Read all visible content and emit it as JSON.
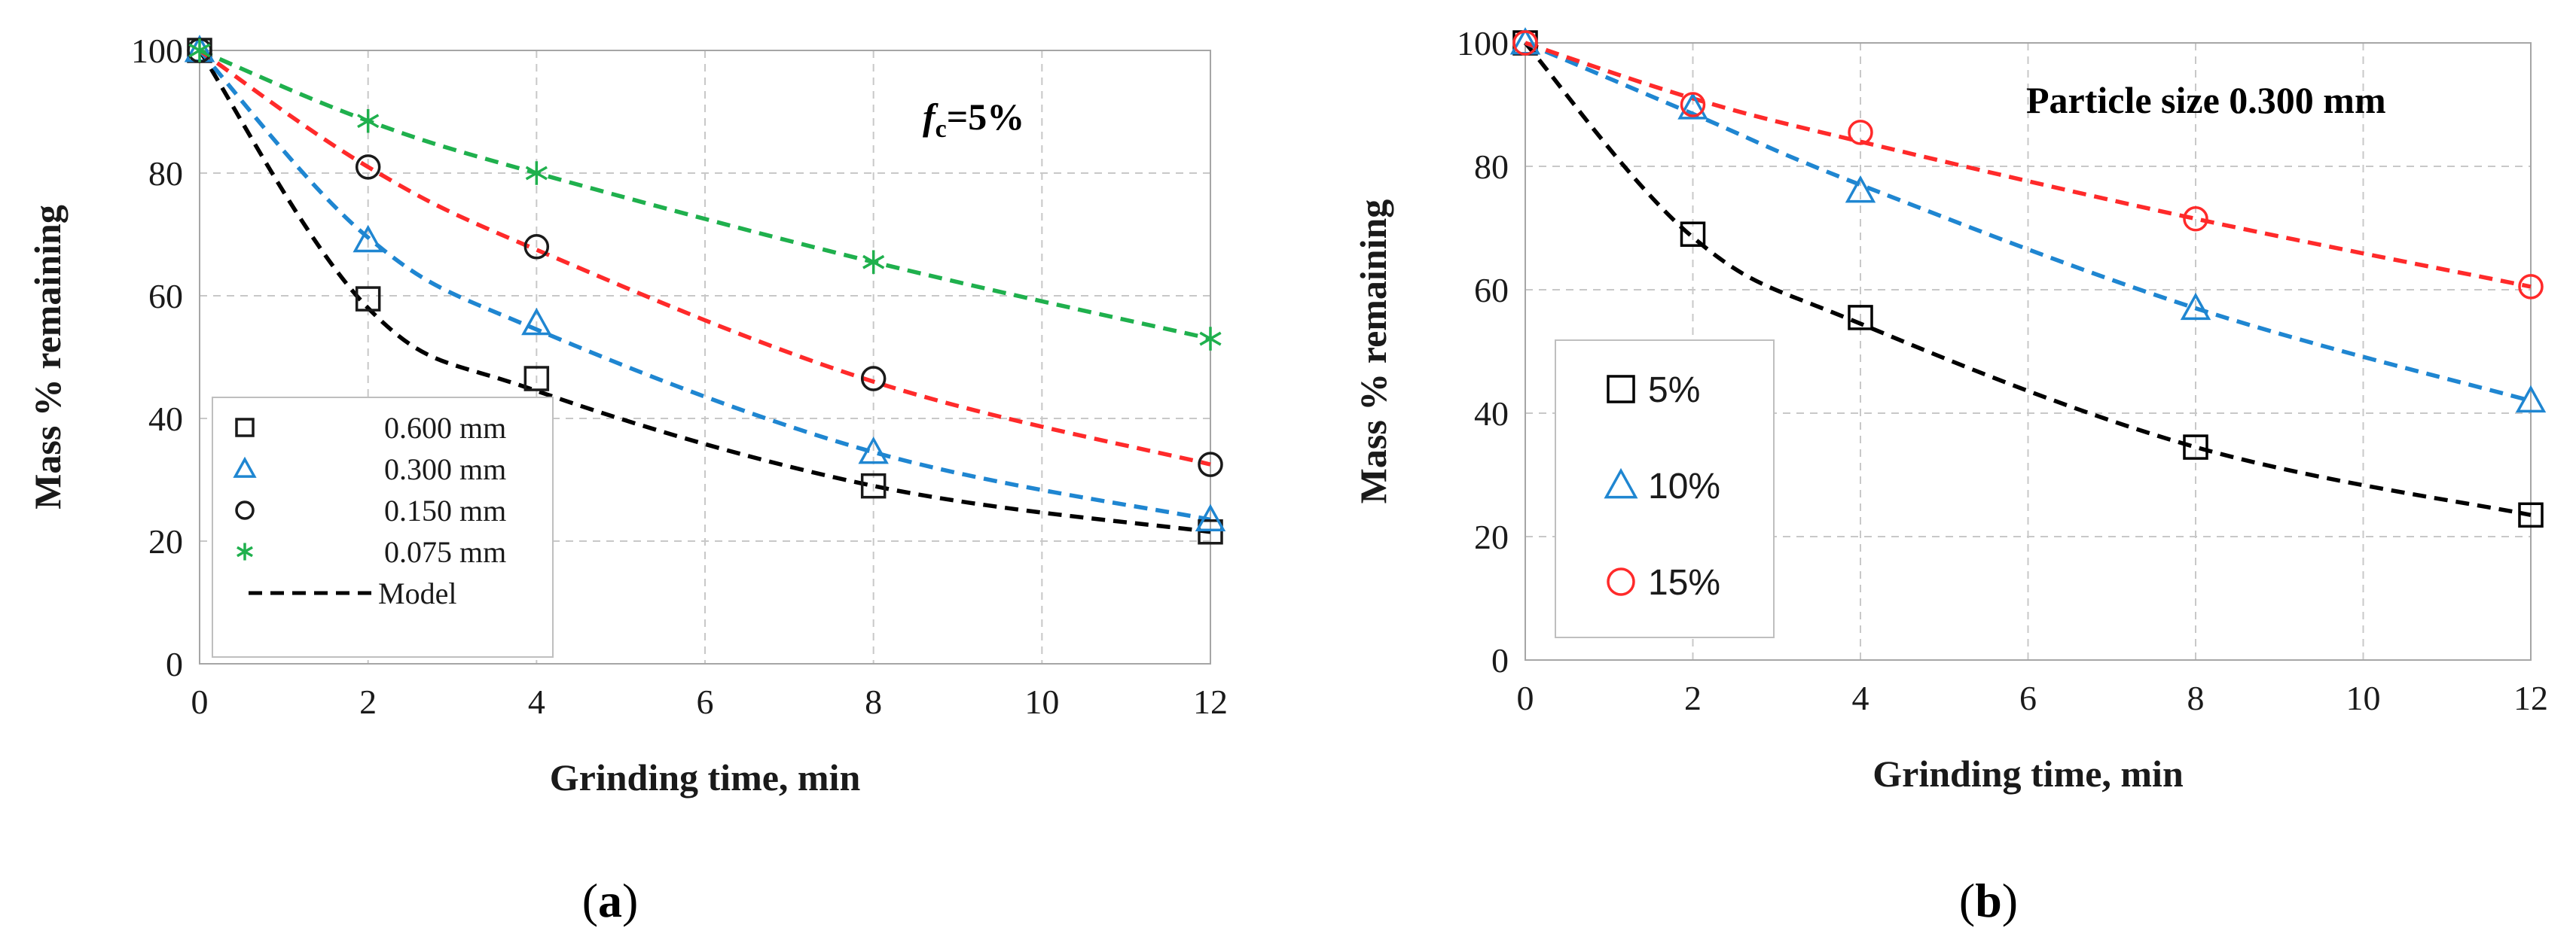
{
  "chart_data": [
    {
      "type": "scatter",
      "panel": "a",
      "caption_letter": "a",
      "annotation": {
        "prefix": "f",
        "subscript": "c",
        "suffix": "=5%"
      },
      "xlabel": "Grinding time, min",
      "ylabel": "Mass % remaining",
      "xlim": [
        0,
        12
      ],
      "ylim": [
        0,
        100
      ],
      "xticks": [
        0,
        2,
        4,
        6,
        8,
        10,
        12
      ],
      "yticks": [
        0,
        20,
        40,
        60,
        80,
        100
      ],
      "grid": true,
      "legend_position": "bottom-left",
      "series": [
        {
          "name": "0.600 mm",
          "marker": "square",
          "color": "#1a1a1a",
          "x": [
            0,
            2,
            4,
            8,
            12
          ],
          "y": [
            100,
            59.5,
            46.5,
            29,
            21.5
          ],
          "model": [
            100,
            58,
            44.5,
            29,
            21.5
          ]
        },
        {
          "name": "0.300 mm",
          "marker": "triangle",
          "color": "#1f86d1",
          "x": [
            0,
            2,
            4,
            8,
            12
          ],
          "y": [
            100,
            69,
            55.5,
            34.5,
            23.5
          ],
          "model": [
            100,
            69.5,
            54.5,
            34.5,
            23.5
          ]
        },
        {
          "name": "0.150 mm",
          "marker": "circle",
          "color": "#1a1a1a",
          "x": [
            0,
            2,
            4,
            8,
            12
          ],
          "y": [
            100,
            81,
            68,
            46.5,
            32.5
          ],
          "model": [
            100,
            81,
            67.5,
            46,
            32.5
          ]
        },
        {
          "name": "0.075 mm",
          "marker": "asterisk",
          "color": "#1fb04d",
          "x": [
            0,
            2,
            4,
            8,
            12
          ],
          "y": [
            100,
            88.5,
            80,
            65.5,
            53
          ],
          "model": [
            100,
            88.5,
            80,
            65.5,
            53
          ]
        }
      ],
      "model_colors": [
        "#000000",
        "#1f86d1",
        "#ff2a2a",
        "#1fb04d"
      ],
      "model_legend": "Model"
    },
    {
      "type": "scatter",
      "panel": "b",
      "caption_letter": "b",
      "annotation_text": "Particle size 0.300 mm",
      "xlabel": "Grinding time, min",
      "ylabel": "Mass % remaining",
      "xlim": [
        0,
        12
      ],
      "ylim": [
        0,
        100
      ],
      "xticks": [
        0,
        2,
        4,
        6,
        8,
        10,
        12
      ],
      "yticks": [
        0,
        20,
        40,
        60,
        80,
        100
      ],
      "grid": true,
      "legend_position": "bottom-left",
      "series": [
        {
          "name": "5%",
          "marker": "square",
          "color": "#000000",
          "x": [
            0,
            2,
            4,
            8,
            12
          ],
          "y": [
            100,
            69,
            55.5,
            34.5,
            23.5
          ],
          "model": [
            100,
            68.5,
            54.5,
            34.5,
            23.5
          ]
        },
        {
          "name": "10%",
          "marker": "triangle",
          "color": "#1f86d1",
          "x": [
            0,
            2,
            4,
            8,
            12
          ],
          "y": [
            100,
            89.5,
            76,
            57,
            42
          ],
          "model": [
            100,
            88.5,
            77,
            57,
            42
          ]
        },
        {
          "name": "15%",
          "marker": "circle",
          "color": "#ff2a2a",
          "x": [
            0,
            2,
            4,
            8,
            12
          ],
          "y": [
            100,
            90,
            85.5,
            71.5,
            60.5
          ],
          "model": [
            100,
            91,
            84,
            71.5,
            60.5
          ]
        }
      ],
      "model_colors": [
        "#000000",
        "#1f86d1",
        "#ff2a2a"
      ]
    }
  ]
}
